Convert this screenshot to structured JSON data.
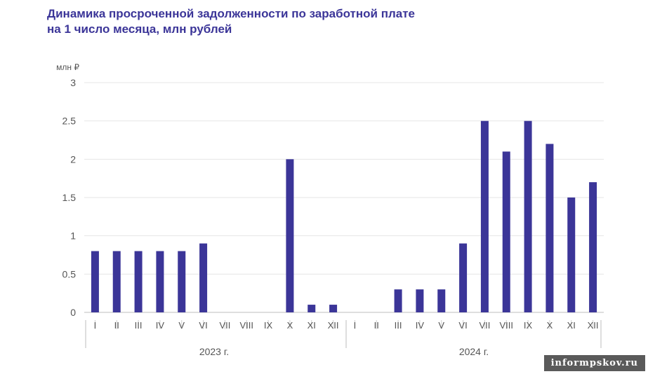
{
  "title_line1": "Динамика просроченной задолженности по заработной плате",
  "title_line2": "на 1 число месяца, млн рублей",
  "watermark": "informpskov.ru",
  "colors": {
    "bar": "#3b3598",
    "title": "#3b3598",
    "axis_text": "#555555",
    "grid": "#e6e6e6"
  },
  "chart_data": {
    "type": "bar",
    "ylabel": "млн ₽",
    "ylim": [
      0,
      3
    ],
    "yticks": [
      "0",
      "0.5",
      "1",
      "1.5",
      "2",
      "2.5",
      "3"
    ],
    "grid": true,
    "groups": [
      {
        "name": "2023 г.",
        "categories": [
          "I",
          "II",
          "III",
          "IV",
          "V",
          "VI",
          "VII",
          "VIII",
          "IX",
          "X",
          "XI",
          "XII"
        ],
        "values": [
          0.8,
          0.8,
          0.8,
          0.8,
          0.8,
          0.9,
          0,
          0,
          0,
          2.0,
          0.1,
          0.1
        ]
      },
      {
        "name": "2024 г.",
        "categories": [
          "I",
          "II",
          "III",
          "IV",
          "V",
          "VI",
          "VII",
          "VIII",
          "IX",
          "X",
          "XI",
          "XII"
        ],
        "values": [
          0,
          0,
          0.3,
          0.3,
          0.3,
          0.9,
          2.5,
          2.1,
          2.5,
          2.2,
          1.5,
          1.7
        ]
      }
    ]
  }
}
